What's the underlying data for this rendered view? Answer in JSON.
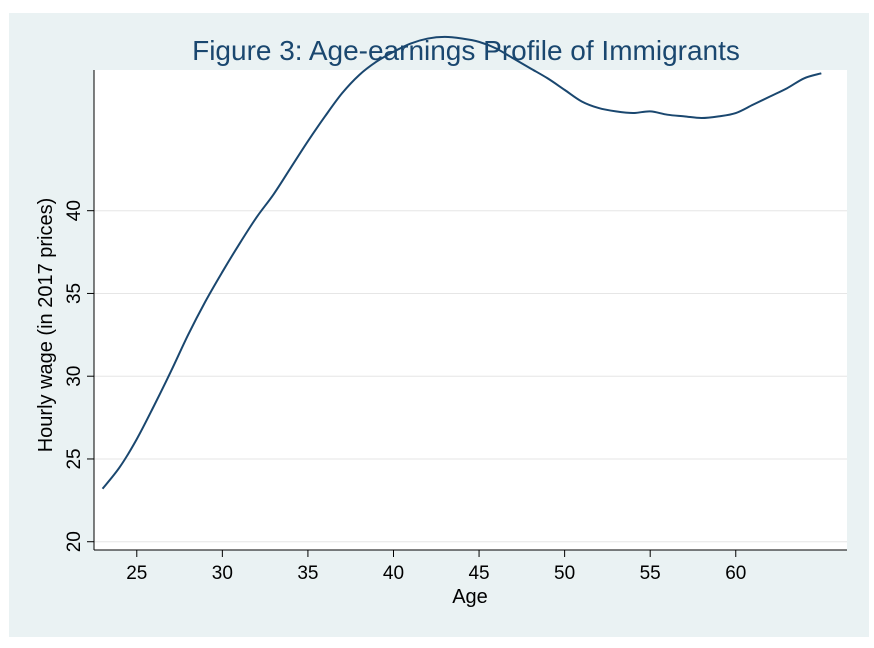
{
  "chart_data": {
    "type": "line",
    "title": "Figure 3: Age-earnings Profile of Immigrants",
    "xlabel": "Age",
    "ylabel": "Hourly wage (in 2017 prices)",
    "xlim": [
      22.5,
      66.5
    ],
    "ylim": [
      19.5,
      48.5
    ],
    "x_ticks": [
      25,
      30,
      35,
      40,
      45,
      50,
      55,
      60
    ],
    "y_ticks": [
      20,
      25,
      30,
      35,
      40
    ],
    "grid": true,
    "legend": "none",
    "colors": {
      "line": "#1a476f",
      "background": "#eaf2f3",
      "plot": "#ffffff",
      "grid": "#e6e6e6"
    },
    "series": [
      {
        "x": [
          23,
          24,
          25,
          26,
          27,
          28,
          29,
          30,
          31,
          32,
          33,
          34,
          35,
          36,
          37,
          38,
          39,
          40,
          41,
          42,
          43,
          44,
          45,
          46,
          47,
          48,
          49,
          50,
          51,
          52,
          53,
          54,
          55,
          56,
          57,
          58,
          59,
          60,
          61,
          62,
          63,
          64,
          65
        ],
        "values": [
          23.2,
          24.5,
          26.2,
          28.2,
          30.3,
          32.5,
          34.5,
          36.3,
          38.0,
          39.6,
          41.0,
          42.6,
          44.2,
          45.7,
          47.1,
          48.2,
          49.0,
          49.6,
          50.1,
          50.4,
          50.5,
          50.4,
          50.2,
          49.8,
          49.2,
          48.6,
          48.0,
          47.3,
          46.6,
          46.2,
          46.0,
          45.9,
          46.0,
          45.8,
          45.7,
          45.6,
          45.7,
          45.9,
          46.4,
          46.9,
          47.4,
          48.0,
          48.3
        ]
      }
    ]
  }
}
